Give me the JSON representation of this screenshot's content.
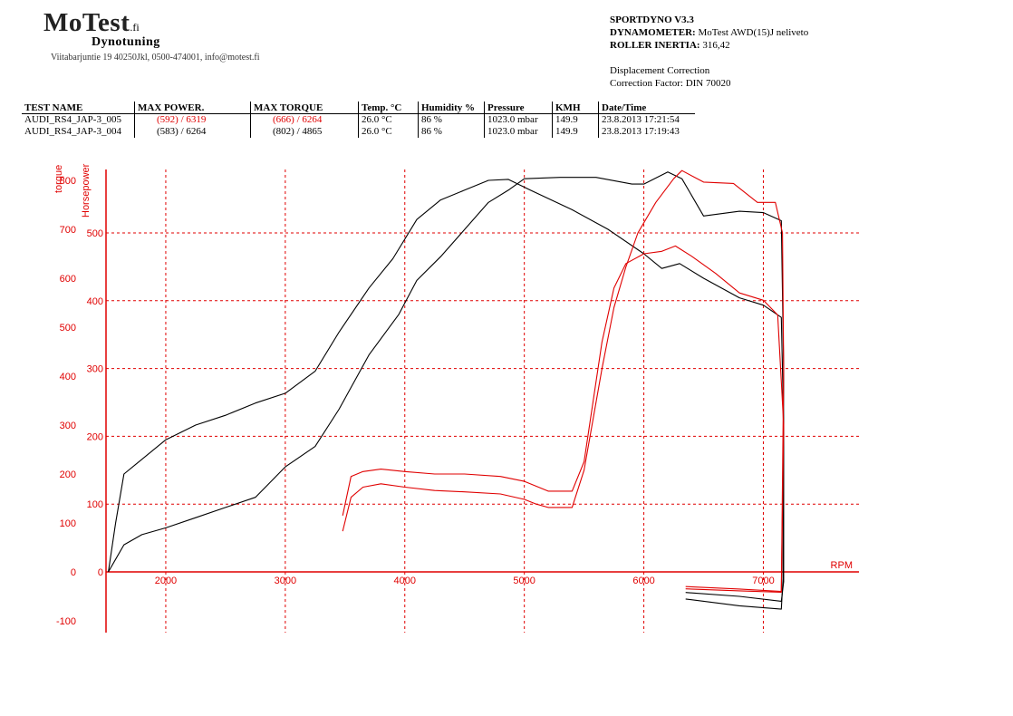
{
  "header": {
    "logo_text": "MoTest",
    "logo_domain": ".fi",
    "logo_subtitle": "Dynotuning",
    "address": "Viitabarjuntie 19 40250Jkl, 0500-474001, info@motest.fi"
  },
  "dyno_info": {
    "software": "SPORTDYNO V3.3",
    "dynamometer_label": "DYNAMOMETER:",
    "dynamometer_value": "MoTest AWD(15)J neliveto",
    "inertia_label": "ROLLER INERTIA:",
    "inertia_value": "316,42",
    "correction_title": "Displacement Correction",
    "correction_factor": "Correction Factor: DIN 70020"
  },
  "results_table": {
    "columns": [
      "TEST NAME",
      "MAX POWER.",
      "MAX TORQUE",
      "Temp. °C",
      "Humidity %",
      "Pressure",
      "KMH",
      "Date/Time"
    ],
    "rows": [
      {
        "test_name": "AUDI_RS4_JAP-3_005",
        "max_power": "(592) / 6319",
        "max_torque": "(666) / 6264",
        "temp": "26.0 °C",
        "humidity": "86 %",
        "pressure": "1023.0 mbar",
        "kmh": "149.9",
        "datetime": "23.8.2013 17:21:54",
        "color": "#e00000"
      },
      {
        "test_name": "AUDI_RS4_JAP-3_004",
        "max_power": "(583) / 6264",
        "max_torque": "(802) / 4865",
        "temp": "26.0 °C",
        "humidity": "86 %",
        "pressure": "1023.0 mbar",
        "kmh": "149.9",
        "datetime": "23.8.2013 17:19:43",
        "color": "#000000"
      }
    ]
  },
  "chart_data": {
    "type": "line",
    "xlabel": "RPM",
    "ylabel_torque": "torque",
    "ylabel_power": "Horsepower",
    "x_range": [
      1500,
      7800
    ],
    "x_ticks": [
      2000,
      3000,
      4000,
      5000,
      6000,
      7000
    ],
    "torque_range": [
      -120,
      820
    ],
    "torque_ticks": [
      -100,
      0,
      100,
      200,
      300,
      400,
      500,
      600,
      700,
      800
    ],
    "power_range": [
      0,
      590
    ],
    "power_ticks": [
      100,
      200,
      300,
      400,
      500
    ],
    "grid": true,
    "axis_color": "#e00000",
    "series": [
      {
        "name": "AUDI_RS4_JAP-3_004",
        "quantity": "torque",
        "axis": "torque",
        "color": "#000000",
        "points": [
          [
            1520,
            0
          ],
          [
            1580,
            100
          ],
          [
            1650,
            200
          ],
          [
            1750,
            220
          ],
          [
            2000,
            270
          ],
          [
            2250,
            300
          ],
          [
            2500,
            320
          ],
          [
            2750,
            345
          ],
          [
            3000,
            365
          ],
          [
            3250,
            410
          ],
          [
            3450,
            490
          ],
          [
            3700,
            580
          ],
          [
            3900,
            640
          ],
          [
            4100,
            720
          ],
          [
            4300,
            760
          ],
          [
            4500,
            780
          ],
          [
            4700,
            800
          ],
          [
            4865,
            802
          ],
          [
            5050,
            780
          ],
          [
            5400,
            740
          ],
          [
            5700,
            700
          ],
          [
            6000,
            650
          ],
          [
            6150,
            620
          ],
          [
            6300,
            630
          ],
          [
            6500,
            600
          ],
          [
            6800,
            560
          ],
          [
            7000,
            545
          ],
          [
            7150,
            520
          ],
          [
            7170,
            300
          ],
          [
            7170,
            -20
          ],
          [
            7150,
            -60
          ],
          [
            6800,
            -50
          ],
          [
            6350,
            -42
          ]
        ]
      },
      {
        "name": "AUDI_RS4_JAP-3_004",
        "quantity": "power",
        "axis": "power",
        "color": "#000000",
        "points": [
          [
            1520,
            0
          ],
          [
            1650,
            40
          ],
          [
            1800,
            55
          ],
          [
            2000,
            65
          ],
          [
            2250,
            80
          ],
          [
            2500,
            95
          ],
          [
            2750,
            110
          ],
          [
            3000,
            155
          ],
          [
            3250,
            185
          ],
          [
            3450,
            240
          ],
          [
            3700,
            320
          ],
          [
            3950,
            380
          ],
          [
            4100,
            430
          ],
          [
            4300,
            465
          ],
          [
            4500,
            505
          ],
          [
            4700,
            545
          ],
          [
            4865,
            563
          ],
          [
            5000,
            580
          ],
          [
            5300,
            582
          ],
          [
            5600,
            582
          ],
          [
            5900,
            572
          ],
          [
            6000,
            572
          ],
          [
            6200,
            590
          ],
          [
            6319,
            580
          ],
          [
            6500,
            525
          ],
          [
            6800,
            532
          ],
          [
            7000,
            530
          ],
          [
            7150,
            518
          ],
          [
            7170,
            300
          ],
          [
            7165,
            -10
          ],
          [
            7150,
            -55
          ],
          [
            6800,
            -50
          ],
          [
            6350,
            -40
          ]
        ]
      },
      {
        "name": "AUDI_RS4_JAP-3_005",
        "quantity": "torque",
        "axis": "torque",
        "color": "#e00000",
        "points": [
          [
            3480,
            115
          ],
          [
            3550,
            195
          ],
          [
            3650,
            205
          ],
          [
            3800,
            210
          ],
          [
            4000,
            205
          ],
          [
            4250,
            200
          ],
          [
            4500,
            200
          ],
          [
            4800,
            195
          ],
          [
            5000,
            185
          ],
          [
            5100,
            175
          ],
          [
            5200,
            165
          ],
          [
            5400,
            165
          ],
          [
            5500,
            225
          ],
          [
            5650,
            470
          ],
          [
            5750,
            580
          ],
          [
            5850,
            630
          ],
          [
            6000,
            650
          ],
          [
            6150,
            655
          ],
          [
            6264,
            666
          ],
          [
            6400,
            645
          ],
          [
            6600,
            610
          ],
          [
            6800,
            570
          ],
          [
            7000,
            555
          ],
          [
            7120,
            525
          ],
          [
            7170,
            300
          ],
          [
            7150,
            -40
          ],
          [
            6800,
            -35
          ],
          [
            6350,
            -30
          ]
        ]
      },
      {
        "name": "AUDI_RS4_JAP-3_005",
        "quantity": "power",
        "axis": "power",
        "color": "#e00000",
        "points": [
          [
            3480,
            60
          ],
          [
            3550,
            110
          ],
          [
            3650,
            125
          ],
          [
            3800,
            130
          ],
          [
            4000,
            125
          ],
          [
            4250,
            120
          ],
          [
            4500,
            118
          ],
          [
            4800,
            115
          ],
          [
            5000,
            107
          ],
          [
            5100,
            100
          ],
          [
            5200,
            95
          ],
          [
            5400,
            95
          ],
          [
            5500,
            150
          ],
          [
            5650,
            300
          ],
          [
            5750,
            390
          ],
          [
            5850,
            450
          ],
          [
            5950,
            500
          ],
          [
            6100,
            545
          ],
          [
            6250,
            580
          ],
          [
            6319,
            592
          ],
          [
            6500,
            575
          ],
          [
            6750,
            573
          ],
          [
            6950,
            545
          ],
          [
            7100,
            545
          ],
          [
            7160,
            500
          ],
          [
            7170,
            300
          ],
          [
            7150,
            -30
          ],
          [
            6800,
            -28
          ],
          [
            6350,
            -25
          ]
        ]
      }
    ]
  }
}
